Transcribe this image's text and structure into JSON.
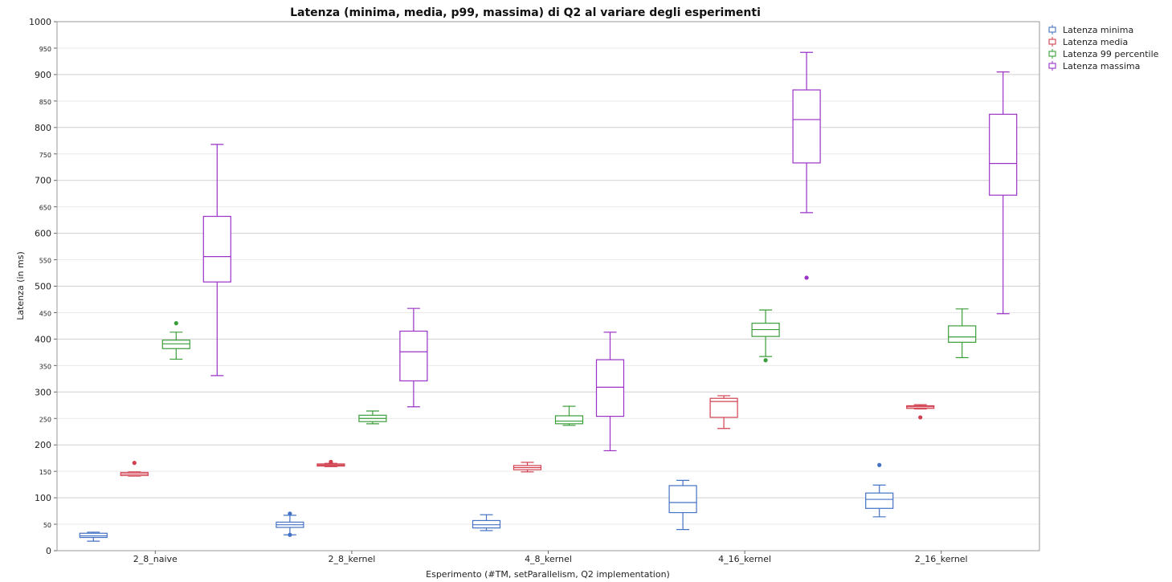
{
  "chart_data": {
    "type": "box",
    "title": "Latenza (minima, media, p99, massima) di Q2 al variare degli esperimenti",
    "xlabel": "Esperimento (#TM, setParallelism, Q2 implementation)",
    "ylabel": "Latenza (in ms)",
    "ylim": [
      0,
      1000
    ],
    "yticks": [
      0,
      50,
      100,
      150,
      200,
      250,
      300,
      350,
      400,
      450,
      500,
      550,
      600,
      650,
      700,
      750,
      800,
      850,
      900,
      950,
      1000
    ],
    "grid": true,
    "legend_position": "top-right",
    "categories": [
      "2_8_naive",
      "2_8_kernel",
      "4_8_kernel",
      "4_16_kernel",
      "2_16_kernel"
    ],
    "series": [
      {
        "name": "Latenza minima",
        "color": "#4472c4",
        "boxes": [
          {
            "min": 18,
            "q1": 25,
            "median": 28,
            "q3": 33,
            "max": 35,
            "outliers": []
          },
          {
            "min": 30,
            "q1": 44,
            "median": 49,
            "q3": 54,
            "max": 67,
            "outliers": [
              30,
              70
            ]
          },
          {
            "min": 38,
            "q1": 43,
            "median": 49,
            "q3": 57,
            "max": 68,
            "outliers": []
          },
          {
            "min": 40,
            "q1": 72,
            "median": 91,
            "q3": 123,
            "max": 133,
            "outliers": []
          },
          {
            "min": 64,
            "q1": 80,
            "median": 97,
            "q3": 109,
            "max": 124,
            "outliers": [
              162
            ]
          }
        ]
      },
      {
        "name": "Latenza media",
        "color": "#d24050",
        "boxes": [
          {
            "min": 141,
            "q1": 142,
            "median": 145,
            "q3": 148,
            "max": 149,
            "outliers": [
              166
            ]
          },
          {
            "min": 159,
            "q1": 160,
            "median": 162,
            "q3": 164,
            "max": 165,
            "outliers": [
              168
            ]
          },
          {
            "min": 149,
            "q1": 153,
            "median": 157,
            "q3": 161,
            "max": 167,
            "outliers": []
          },
          {
            "min": 231,
            "q1": 252,
            "median": 282,
            "q3": 288,
            "max": 293,
            "outliers": []
          },
          {
            "min": 268,
            "q1": 269,
            "median": 272,
            "q3": 274,
            "max": 276,
            "outliers": [
              252
            ]
          }
        ]
      },
      {
        "name": "Latenza 99 percentile",
        "color": "#3a9e3a",
        "boxes": [
          {
            "min": 362,
            "q1": 382,
            "median": 391,
            "q3": 398,
            "max": 413,
            "outliers": [
              430
            ]
          },
          {
            "min": 240,
            "q1": 244,
            "median": 250,
            "q3": 256,
            "max": 264,
            "outliers": []
          },
          {
            "min": 237,
            "q1": 240,
            "median": 245,
            "q3": 255,
            "max": 273,
            "outliers": []
          },
          {
            "min": 367,
            "q1": 405,
            "median": 418,
            "q3": 430,
            "max": 455,
            "outliers": [
              360
            ]
          },
          {
            "min": 365,
            "q1": 394,
            "median": 404,
            "q3": 425,
            "max": 457,
            "outliers": []
          }
        ]
      },
      {
        "name": "Latenza massima",
        "color": "#9a32c8",
        "boxes": [
          {
            "min": 331,
            "q1": 508,
            "median": 556,
            "q3": 632,
            "max": 768,
            "outliers": []
          },
          {
            "min": 272,
            "q1": 321,
            "median": 376,
            "q3": 415,
            "max": 458,
            "outliers": []
          },
          {
            "min": 189,
            "q1": 254,
            "median": 309,
            "q3": 361,
            "max": 413,
            "outliers": []
          },
          {
            "min": 639,
            "q1": 733,
            "median": 815,
            "q3": 871,
            "max": 942,
            "outliers": [
              516
            ]
          },
          {
            "min": 448,
            "q1": 672,
            "median": 732,
            "q3": 825,
            "max": 905,
            "outliers": []
          }
        ]
      }
    ]
  }
}
